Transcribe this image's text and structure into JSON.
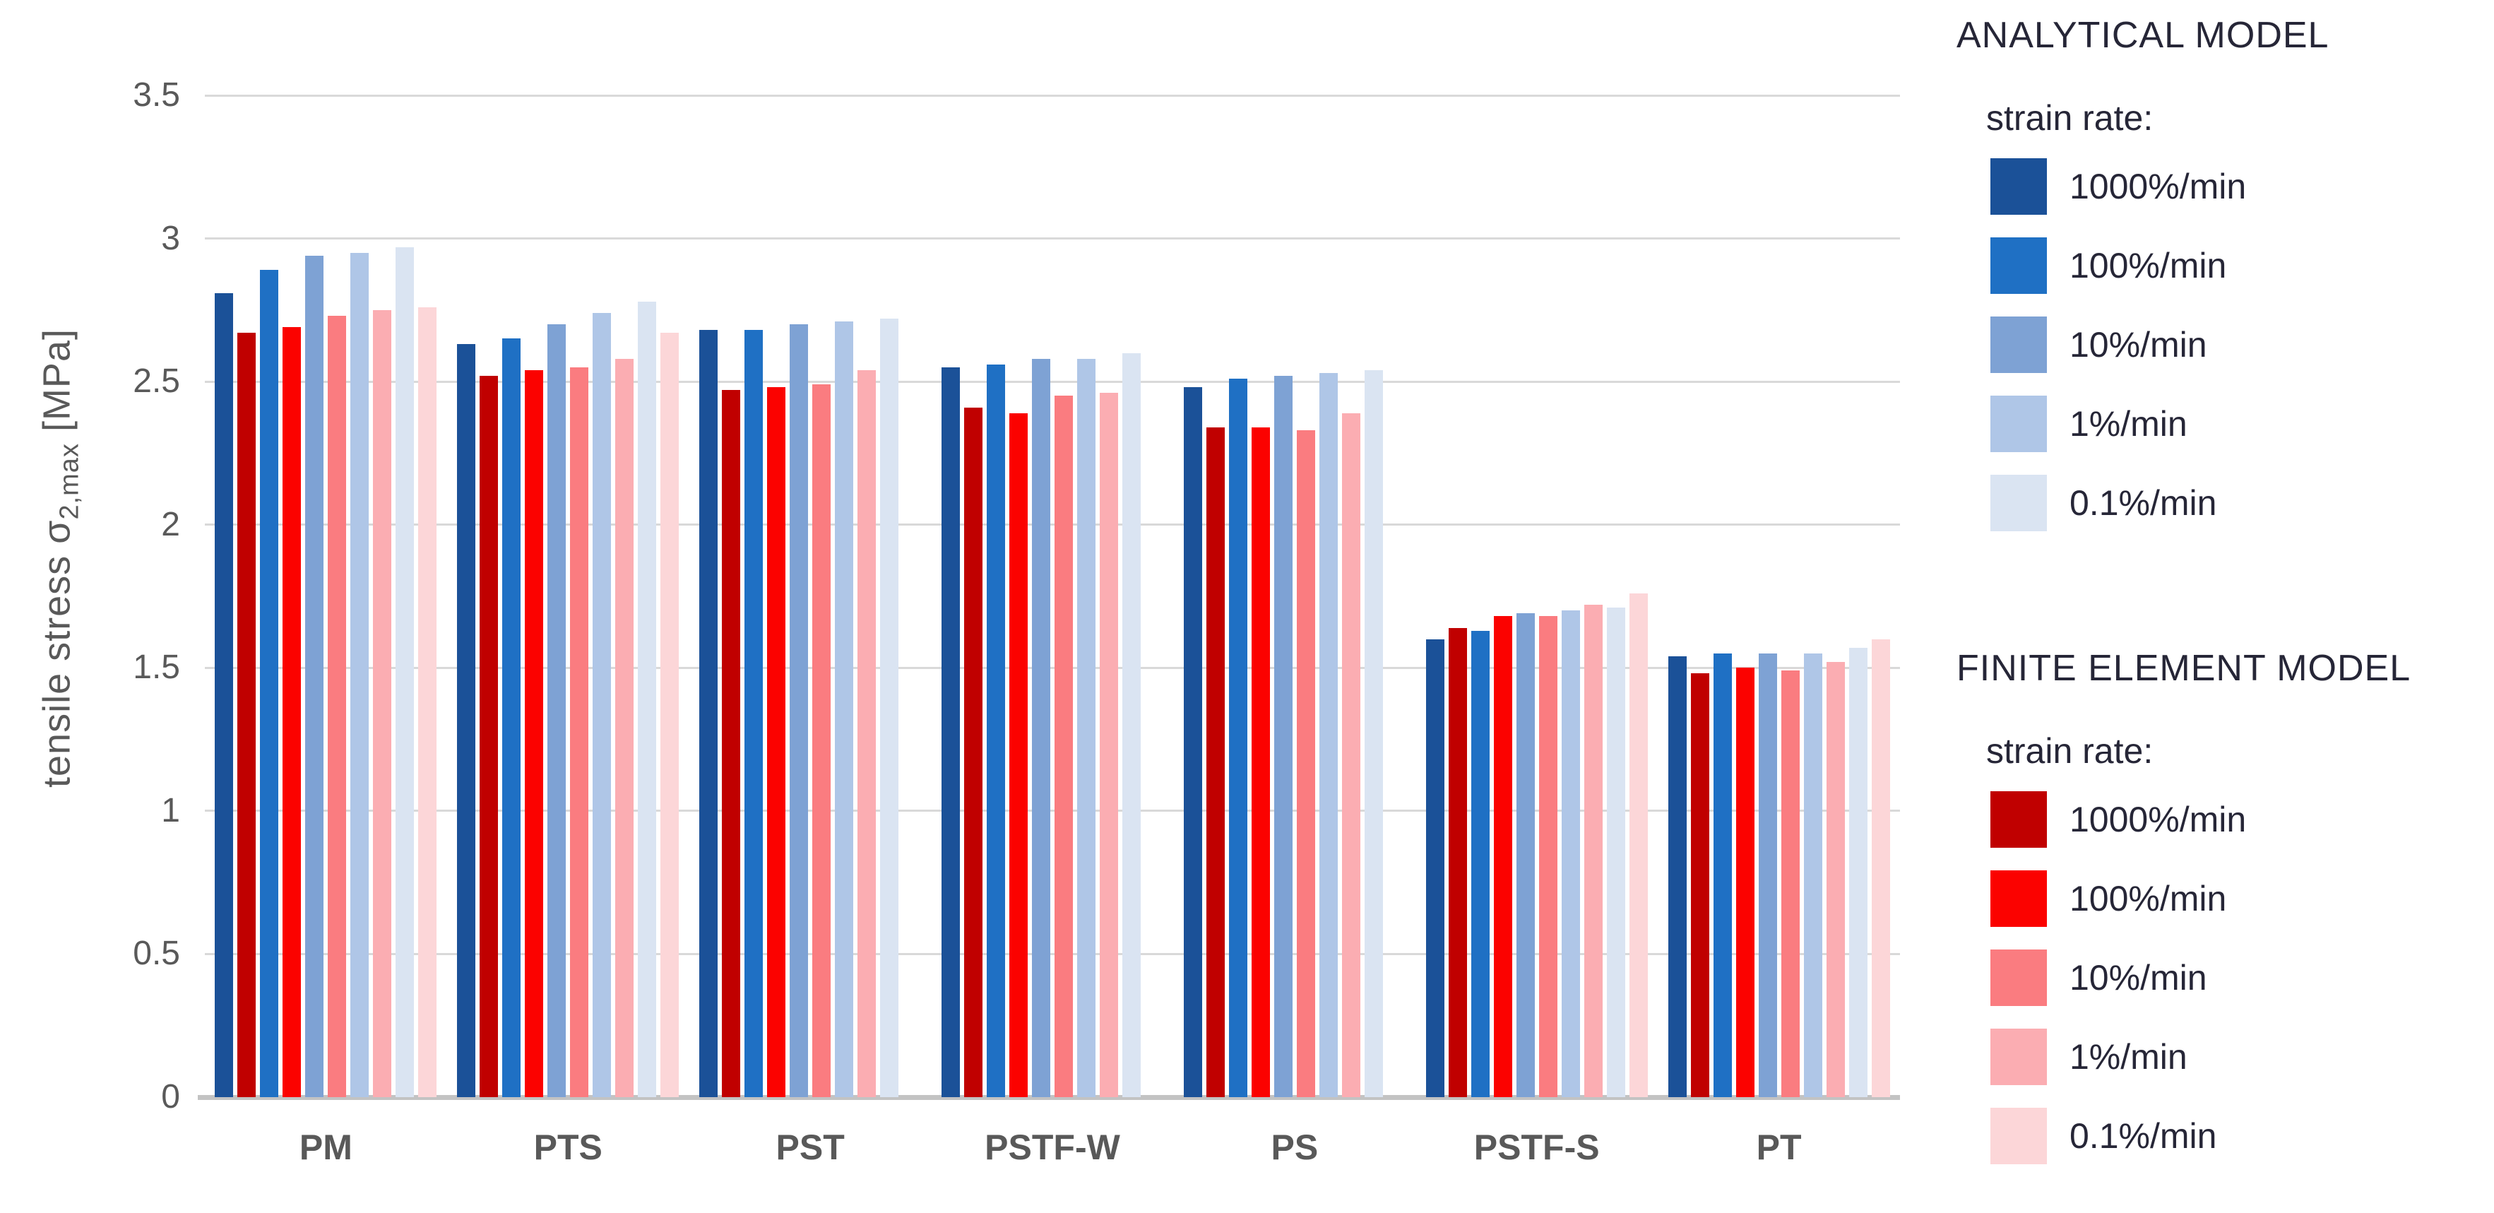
{
  "chart_data": {
    "type": "bar",
    "title": "",
    "ylabel": {
      "prefix": "tensile stress σ",
      "subscript": "2,max",
      "suffix": " [MPa]"
    },
    "categories": [
      "PM",
      "PTS",
      "PST",
      "PSTF-W",
      "PS",
      "PSTF-S",
      "PT"
    ],
    "ylim": [
      0,
      3.5
    ],
    "yticks": [
      "0",
      "0.5",
      "1",
      "1.5",
      "2",
      "2.5",
      "3",
      "3.5"
    ],
    "grid": true,
    "legend_position": "right",
    "strain_rates": [
      "1000%/min",
      "100%/min",
      "10%/min",
      "1%/min",
      "0.1%/min"
    ],
    "bar_order": "for each strain rate (fastest to slowest): analytical bar then finite-element bar; missing finite-element 0.1%/min bars for PST, PSTF-W and PS leave an empty slot",
    "series": [
      {
        "model": "analytical",
        "rate": "1000%/min",
        "color": "#1b5198",
        "values": [
          2.81,
          2.63,
          2.68,
          2.55,
          2.48,
          1.6,
          1.54
        ]
      },
      {
        "model": "finite_element",
        "rate": "1000%/min",
        "color": "#c00000",
        "values": [
          2.67,
          2.52,
          2.47,
          2.41,
          2.34,
          1.64,
          1.48
        ]
      },
      {
        "model": "analytical",
        "rate": "100%/min",
        "color": "#1f70c4",
        "values": [
          2.89,
          2.65,
          2.68,
          2.56,
          2.51,
          1.63,
          1.55
        ]
      },
      {
        "model": "finite_element",
        "rate": "100%/min",
        "color": "#fb0200",
        "values": [
          2.69,
          2.54,
          2.48,
          2.39,
          2.34,
          1.68,
          1.5
        ]
      },
      {
        "model": "analytical",
        "rate": "10%/min",
        "color": "#7ea2d4",
        "values": [
          2.94,
          2.7,
          2.7,
          2.58,
          2.52,
          1.69,
          1.55
        ]
      },
      {
        "model": "finite_element",
        "rate": "10%/min",
        "color": "#fa7c80",
        "values": [
          2.73,
          2.55,
          2.49,
          2.45,
          2.33,
          1.68,
          1.49
        ]
      },
      {
        "model": "analytical",
        "rate": "1%/min",
        "color": "#afc6e7",
        "values": [
          2.95,
          2.74,
          2.71,
          2.58,
          2.53,
          1.7,
          1.55
        ]
      },
      {
        "model": "finite_element",
        "rate": "1%/min",
        "color": "#fbadb2",
        "values": [
          2.75,
          2.58,
          2.54,
          2.46,
          2.39,
          1.72,
          1.52
        ]
      },
      {
        "model": "analytical",
        "rate": "0.1%/min",
        "color": "#dae4f2",
        "values": [
          2.97,
          2.78,
          2.72,
          2.6,
          2.54,
          1.71,
          1.57
        ]
      },
      {
        "model": "finite_element",
        "rate": "0.1%/min",
        "color": "#fcd6d8",
        "values": [
          2.76,
          2.67,
          null,
          null,
          null,
          1.76,
          1.6
        ]
      }
    ]
  },
  "legend": {
    "sections": [
      {
        "title": "ANALYTICAL MODEL",
        "subtitle": "strain rate:",
        "items": [
          {
            "label": "1000%/min",
            "color": "#1b5198"
          },
          {
            "label": "100%/min",
            "color": "#1f70c4"
          },
          {
            "label": "10%/min",
            "color": "#7ea2d4"
          },
          {
            "label": "1%/min",
            "color": "#afc6e7"
          },
          {
            "label": "0.1%/min",
            "color": "#dae4f2"
          }
        ]
      },
      {
        "title": "FINITE ELEMENT MODEL",
        "subtitle": "strain rate:",
        "items": [
          {
            "label": "1000%/min",
            "color": "#c00000"
          },
          {
            "label": "100%/min",
            "color": "#fb0200"
          },
          {
            "label": "10%/min",
            "color": "#fa7c80"
          },
          {
            "label": "1%/min",
            "color": "#fbadb2"
          },
          {
            "label": "0.1%/min",
            "color": "#fcd6d8"
          }
        ]
      }
    ]
  }
}
